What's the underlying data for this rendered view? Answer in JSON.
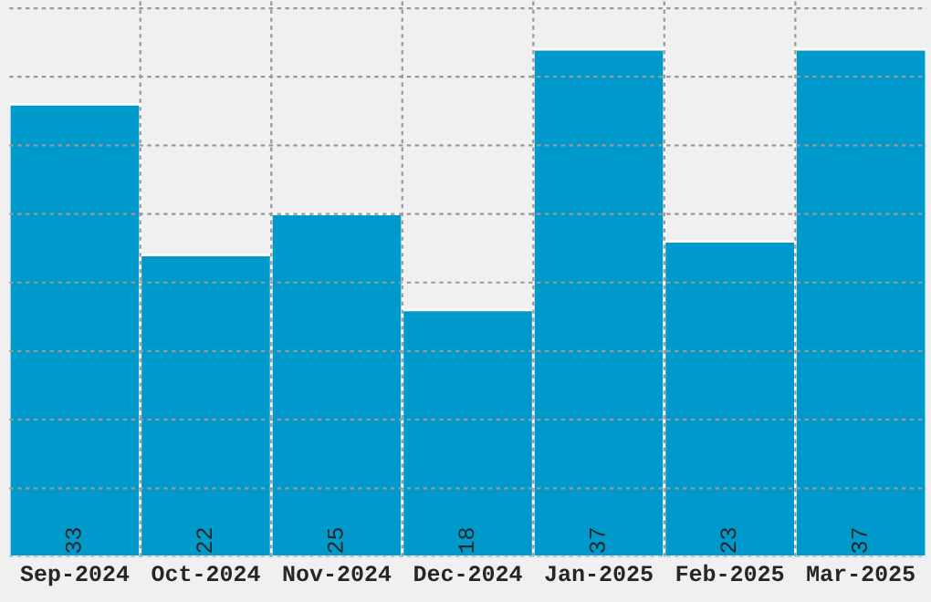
{
  "chart_data": {
    "type": "bar",
    "categories": [
      "Sep-2024",
      "Oct-2024",
      "Nov-2024",
      "Dec-2024",
      "Jan-2025",
      "Feb-2025",
      "Mar-2025"
    ],
    "values": [
      33,
      22,
      25,
      18,
      37,
      23,
      37
    ],
    "color": "#0099cc",
    "ylim": [
      0,
      40.6
    ],
    "tick_labels": "x",
    "data_labels": true,
    "grid": true
  }
}
